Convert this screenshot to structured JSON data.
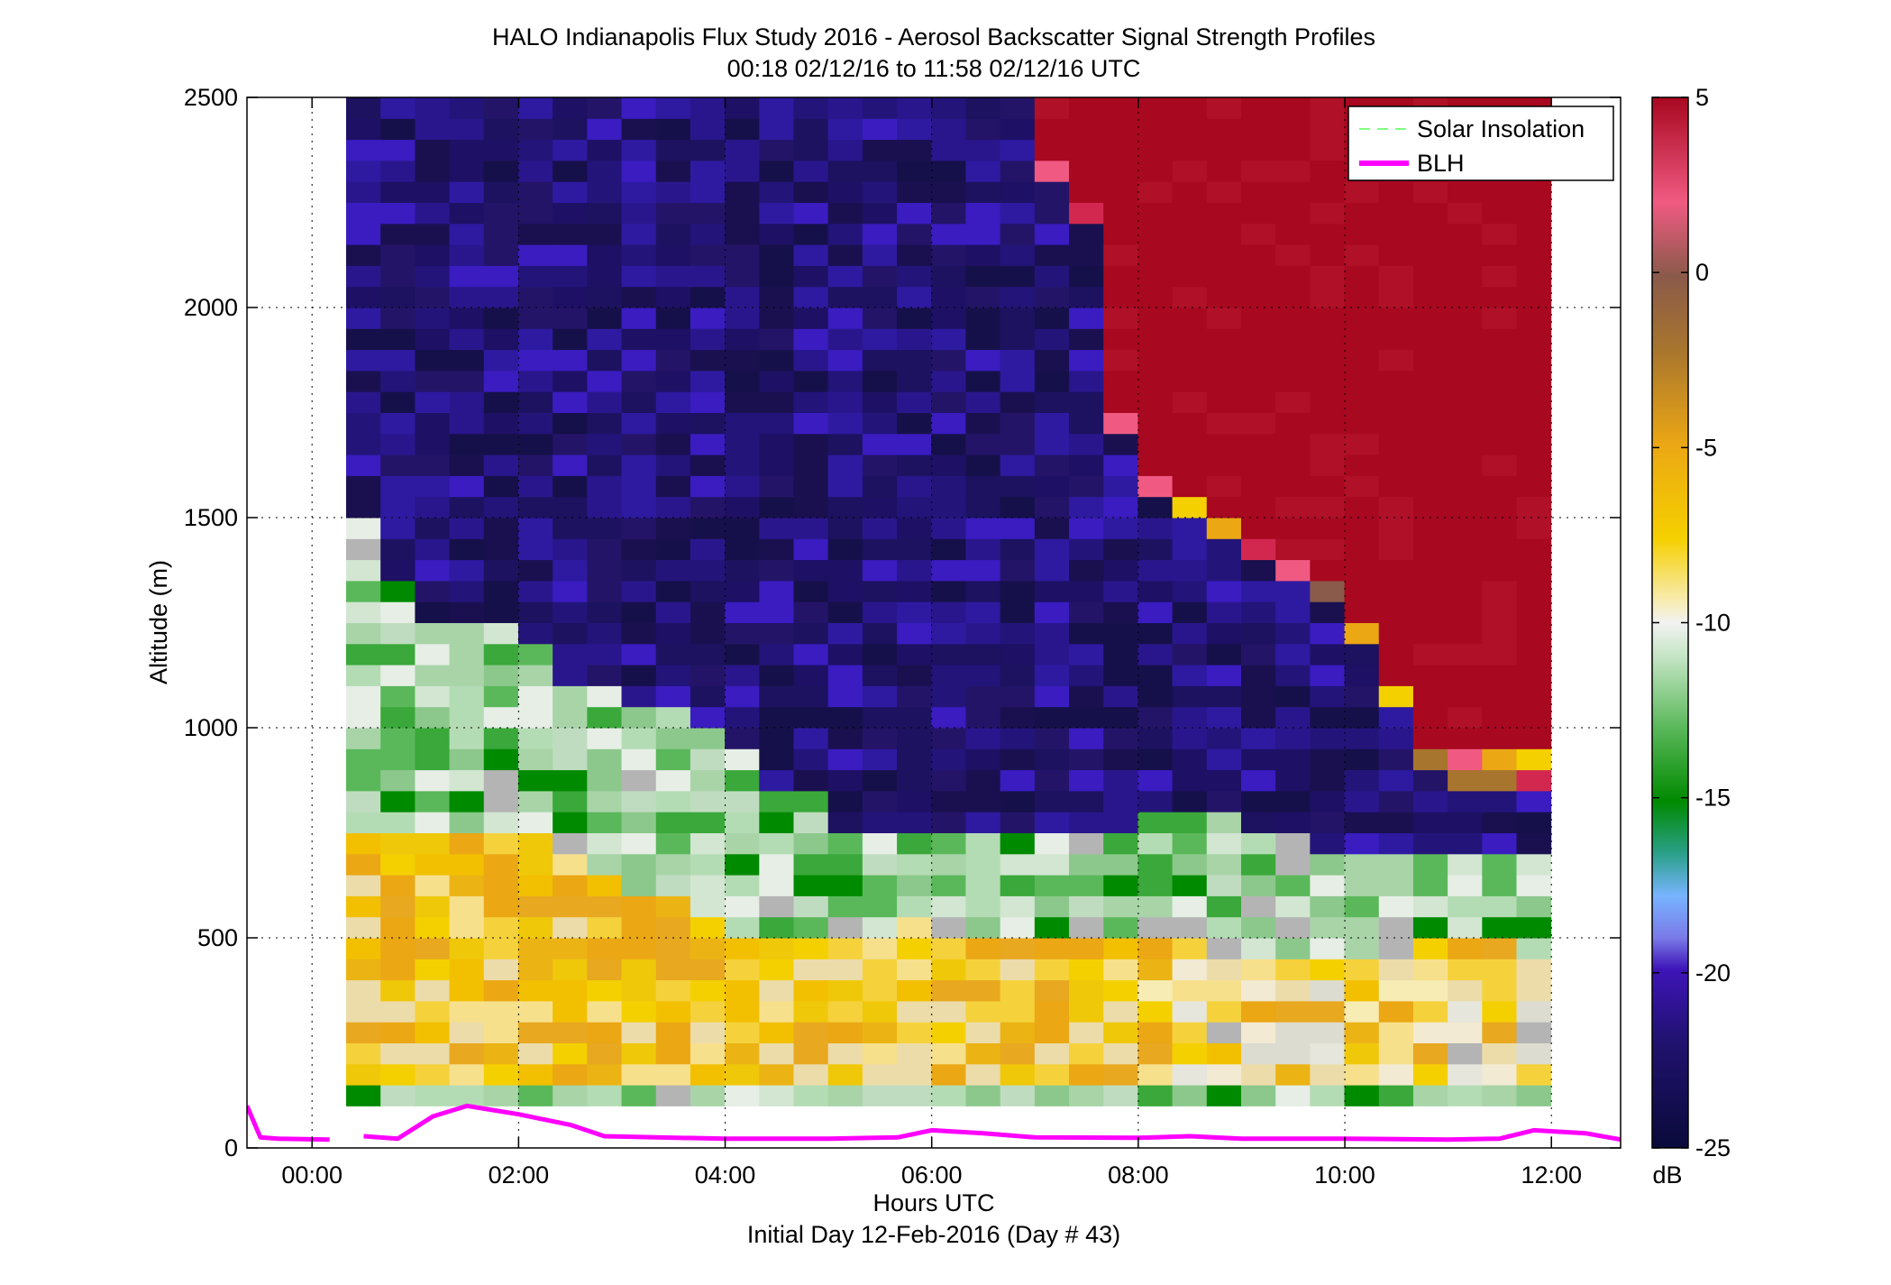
{
  "title_line1": "HALO Indianapolis Flux Study 2016 - Aerosol Backscatter Signal Strength Profiles",
  "title_line2": "00:18 02/12/16 to 11:58 02/12/16  UTC",
  "chart_data": {
    "type": "heatmap",
    "xlabel": "Hours UTC",
    "xlabel2": "Initial Day 12-Feb-2016 (Day # 43)",
    "ylabel": "Altitude (m)",
    "xlim": [
      -0.63,
      12.67
    ],
    "ylim": [
      0,
      2500
    ],
    "x_tick_values": [
      0,
      2,
      4,
      6,
      8,
      10,
      12
    ],
    "x_tick_labels": [
      "00:00",
      "02:00",
      "04:00",
      "06:00",
      "08:00",
      "10:00",
      "12:00"
    ],
    "y_tick_values": [
      0,
      500,
      1000,
      1500,
      2000,
      2500
    ],
    "y_tick_labels": [
      "0",
      "500",
      "1000",
      "1500",
      "2000",
      "2500"
    ],
    "grid": true,
    "legend_placement": "top-right",
    "legend": [
      {
        "label": "Solar Insolation",
        "color": "#80ff80",
        "style": "dashed"
      },
      {
        "label": "BLH",
        "color": "#ff00ff",
        "style": "solid"
      }
    ],
    "colorbar": {
      "unit": "dB",
      "range": [
        -25,
        5
      ],
      "tick_values": [
        5,
        0,
        -5,
        -10,
        -15,
        -20,
        -25
      ],
      "tick_labels": [
        "5",
        "0",
        "-5",
        "-10",
        "-15",
        "-20",
        "-25"
      ]
    },
    "heatmap": {
      "time_start_hr": 0.33,
      "time_step_hr": 0.3333,
      "alt_start_m": 100,
      "alt_step_m": 50,
      "columns": [
        {
          "t": 0.5,
          "blh_top": 1500,
          "trans_top": 780,
          "aloft_top": null
        },
        {
          "t": 0.83,
          "blh_top": 1350,
          "trans_top": 760,
          "aloft_top": null
        },
        {
          "t": 1.17,
          "blh_top": 1280,
          "trans_top": 760,
          "aloft_top": null
        },
        {
          "t": 1.5,
          "blh_top": 1260,
          "trans_top": 760,
          "aloft_top": null
        },
        {
          "t": 1.83,
          "blh_top": 1250,
          "trans_top": 760,
          "aloft_top": null
        },
        {
          "t": 2.17,
          "blh_top": 1200,
          "trans_top": 760,
          "aloft_top": null
        },
        {
          "t": 2.5,
          "blh_top": 1100,
          "trans_top": 700,
          "aloft_top": null
        },
        {
          "t": 2.83,
          "blh_top": 1100,
          "trans_top": 660,
          "aloft_top": null
        },
        {
          "t": 3.17,
          "blh_top": 1080,
          "trans_top": 640,
          "aloft_top": null
        },
        {
          "t": 3.5,
          "blh_top": 1080,
          "trans_top": 600,
          "aloft_top": null
        },
        {
          "t": 3.83,
          "blh_top": 1000,
          "trans_top": 560,
          "aloft_top": null
        },
        {
          "t": 4.17,
          "blh_top": 950,
          "trans_top": 520,
          "aloft_top": null
        },
        {
          "t": 4.5,
          "blh_top": 880,
          "trans_top": 500,
          "aloft_top": null
        },
        {
          "t": 4.83,
          "blh_top": 850,
          "trans_top": 500,
          "aloft_top": null
        },
        {
          "t": 5.17,
          "blh_top": 780,
          "trans_top": 520,
          "aloft_top": null
        },
        {
          "t": 5.5,
          "blh_top": 760,
          "trans_top": 540,
          "aloft_top": null
        },
        {
          "t": 5.83,
          "blh_top": 750,
          "trans_top": 560,
          "aloft_top": null
        },
        {
          "t": 6.17,
          "blh_top": 760,
          "trans_top": 540,
          "aloft_top": null
        },
        {
          "t": 6.5,
          "blh_top": 780,
          "trans_top": 520,
          "aloft_top": null
        },
        {
          "t": 6.83,
          "blh_top": 780,
          "trans_top": 520,
          "aloft_top": 2500
        },
        {
          "t": 7.17,
          "blh_top": 780,
          "trans_top": 520,
          "aloft_top": 2300
        },
        {
          "t": 7.5,
          "blh_top": 780,
          "trans_top": 500,
          "aloft_top": 2200
        },
        {
          "t": 7.83,
          "blh_top": 780,
          "trans_top": 500,
          "aloft_top": 1700
        },
        {
          "t": 8.17,
          "blh_top": 800,
          "trans_top": 500,
          "aloft_top": 1550
        },
        {
          "t": 8.5,
          "blh_top": 800,
          "trans_top": 500,
          "aloft_top": 1500
        },
        {
          "t": 8.83,
          "blh_top": 800,
          "trans_top": 460,
          "aloft_top": 1450
        },
        {
          "t": 9.17,
          "blh_top": 760,
          "trans_top": 460,
          "aloft_top": 1400
        },
        {
          "t": 9.5,
          "blh_top": 760,
          "trans_top": 460,
          "aloft_top": 1350
        },
        {
          "t": 9.83,
          "blh_top": 740,
          "trans_top": 460,
          "aloft_top": 1300
        },
        {
          "t": 10.17,
          "blh_top": 720,
          "trans_top": 460,
          "aloft_top": 1200
        },
        {
          "t": 10.5,
          "blh_top": 700,
          "trans_top": 460,
          "aloft_top": 1050
        },
        {
          "t": 10.83,
          "blh_top": 700,
          "trans_top": 500,
          "aloft_top": 900
        },
        {
          "t": 11.17,
          "blh_top": 700,
          "trans_top": 500,
          "aloft_top": 880
        },
        {
          "t": 11.5,
          "blh_top": 700,
          "trans_top": 500,
          "aloft_top": 880
        },
        {
          "t": 11.83,
          "blh_top": 700,
          "trans_top": 480,
          "aloft_top": 880
        }
      ]
    },
    "series": [
      {
        "name": "BLH",
        "color": "#ff00ff",
        "segments": [
          {
            "x": [
              -0.63,
              -0.5,
              -0.33,
              0.17
            ],
            "y": [
              100,
              25,
              22,
              20
            ]
          },
          {
            "x": [
              0.5,
              0.83,
              1.17,
              1.5,
              2.0,
              2.5,
              2.83,
              3.33,
              4.0,
              5.0,
              5.67,
              6.0,
              6.5,
              7.0,
              8.0,
              8.5,
              9.0,
              10.0,
              11.0,
              11.5,
              11.83,
              12.33,
              12.67
            ],
            "y": [
              28,
              22,
              75,
              100,
              80,
              55,
              28,
              25,
              22,
              22,
              25,
              42,
              35,
              25,
              24,
              28,
              22,
              22,
              20,
              22,
              42,
              35,
              20
            ]
          }
        ]
      }
    ]
  }
}
